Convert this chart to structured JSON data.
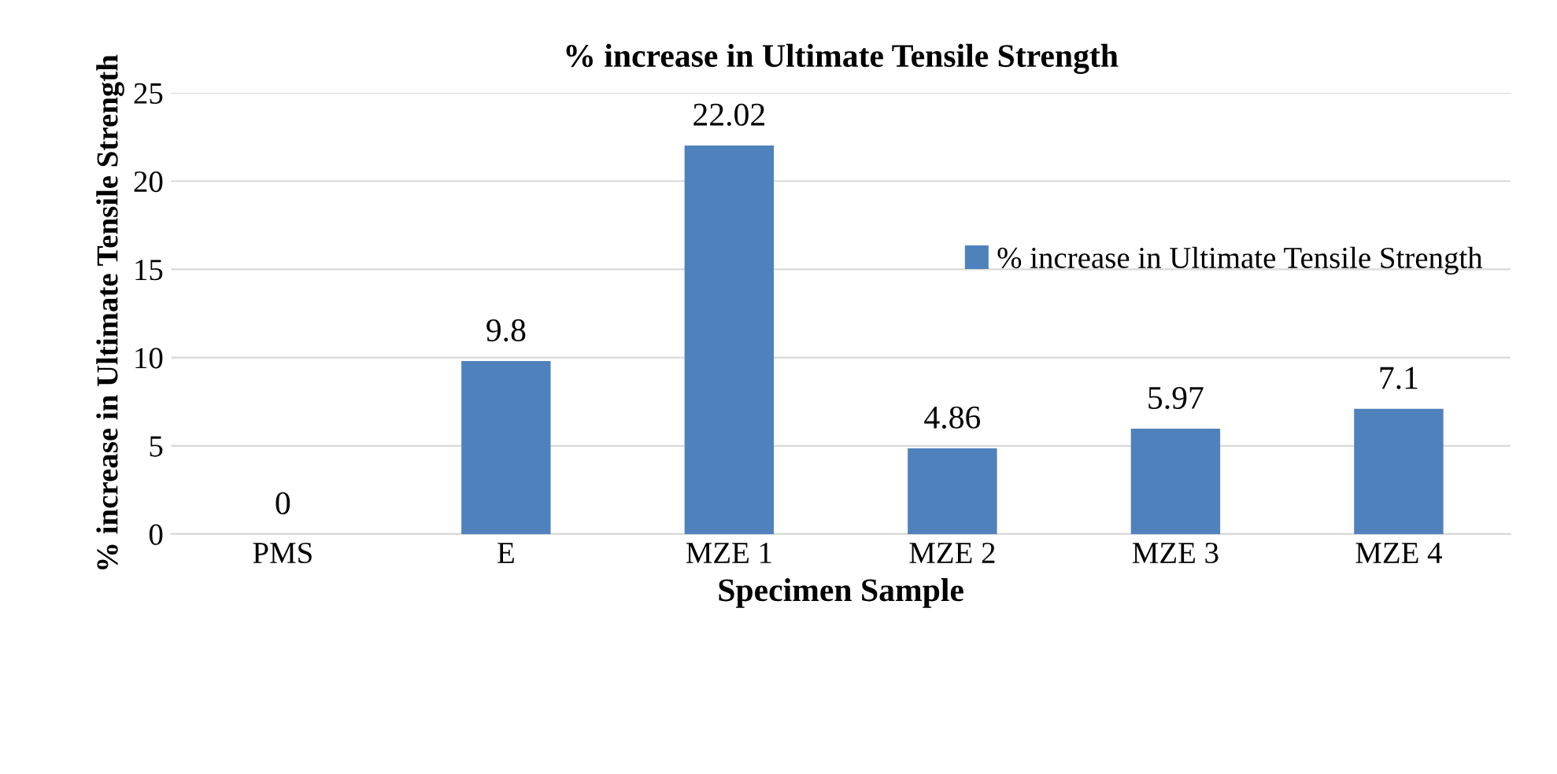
{
  "chart_data": {
    "type": "bar",
    "title": "% increase in Ultimate Tensile Strength",
    "xlabel": "Specimen Sample",
    "ylabel": "% increase in Ultimate Tensile Strength",
    "categories": [
      "PMS",
      "E",
      "MZE 1",
      "MZE 2",
      "MZE 3",
      "MZE 4"
    ],
    "series": [
      {
        "name": "% increase in Ultimate Tensile Strength",
        "color": "#4f81bd",
        "values": [
          0,
          9.8,
          22.02,
          4.86,
          5.97,
          7.1
        ]
      }
    ],
    "ylim": [
      0,
      25
    ],
    "yticks": [
      0,
      5,
      10,
      15,
      20,
      25
    ],
    "grid": "y",
    "legend": "right",
    "data_labels": true
  }
}
